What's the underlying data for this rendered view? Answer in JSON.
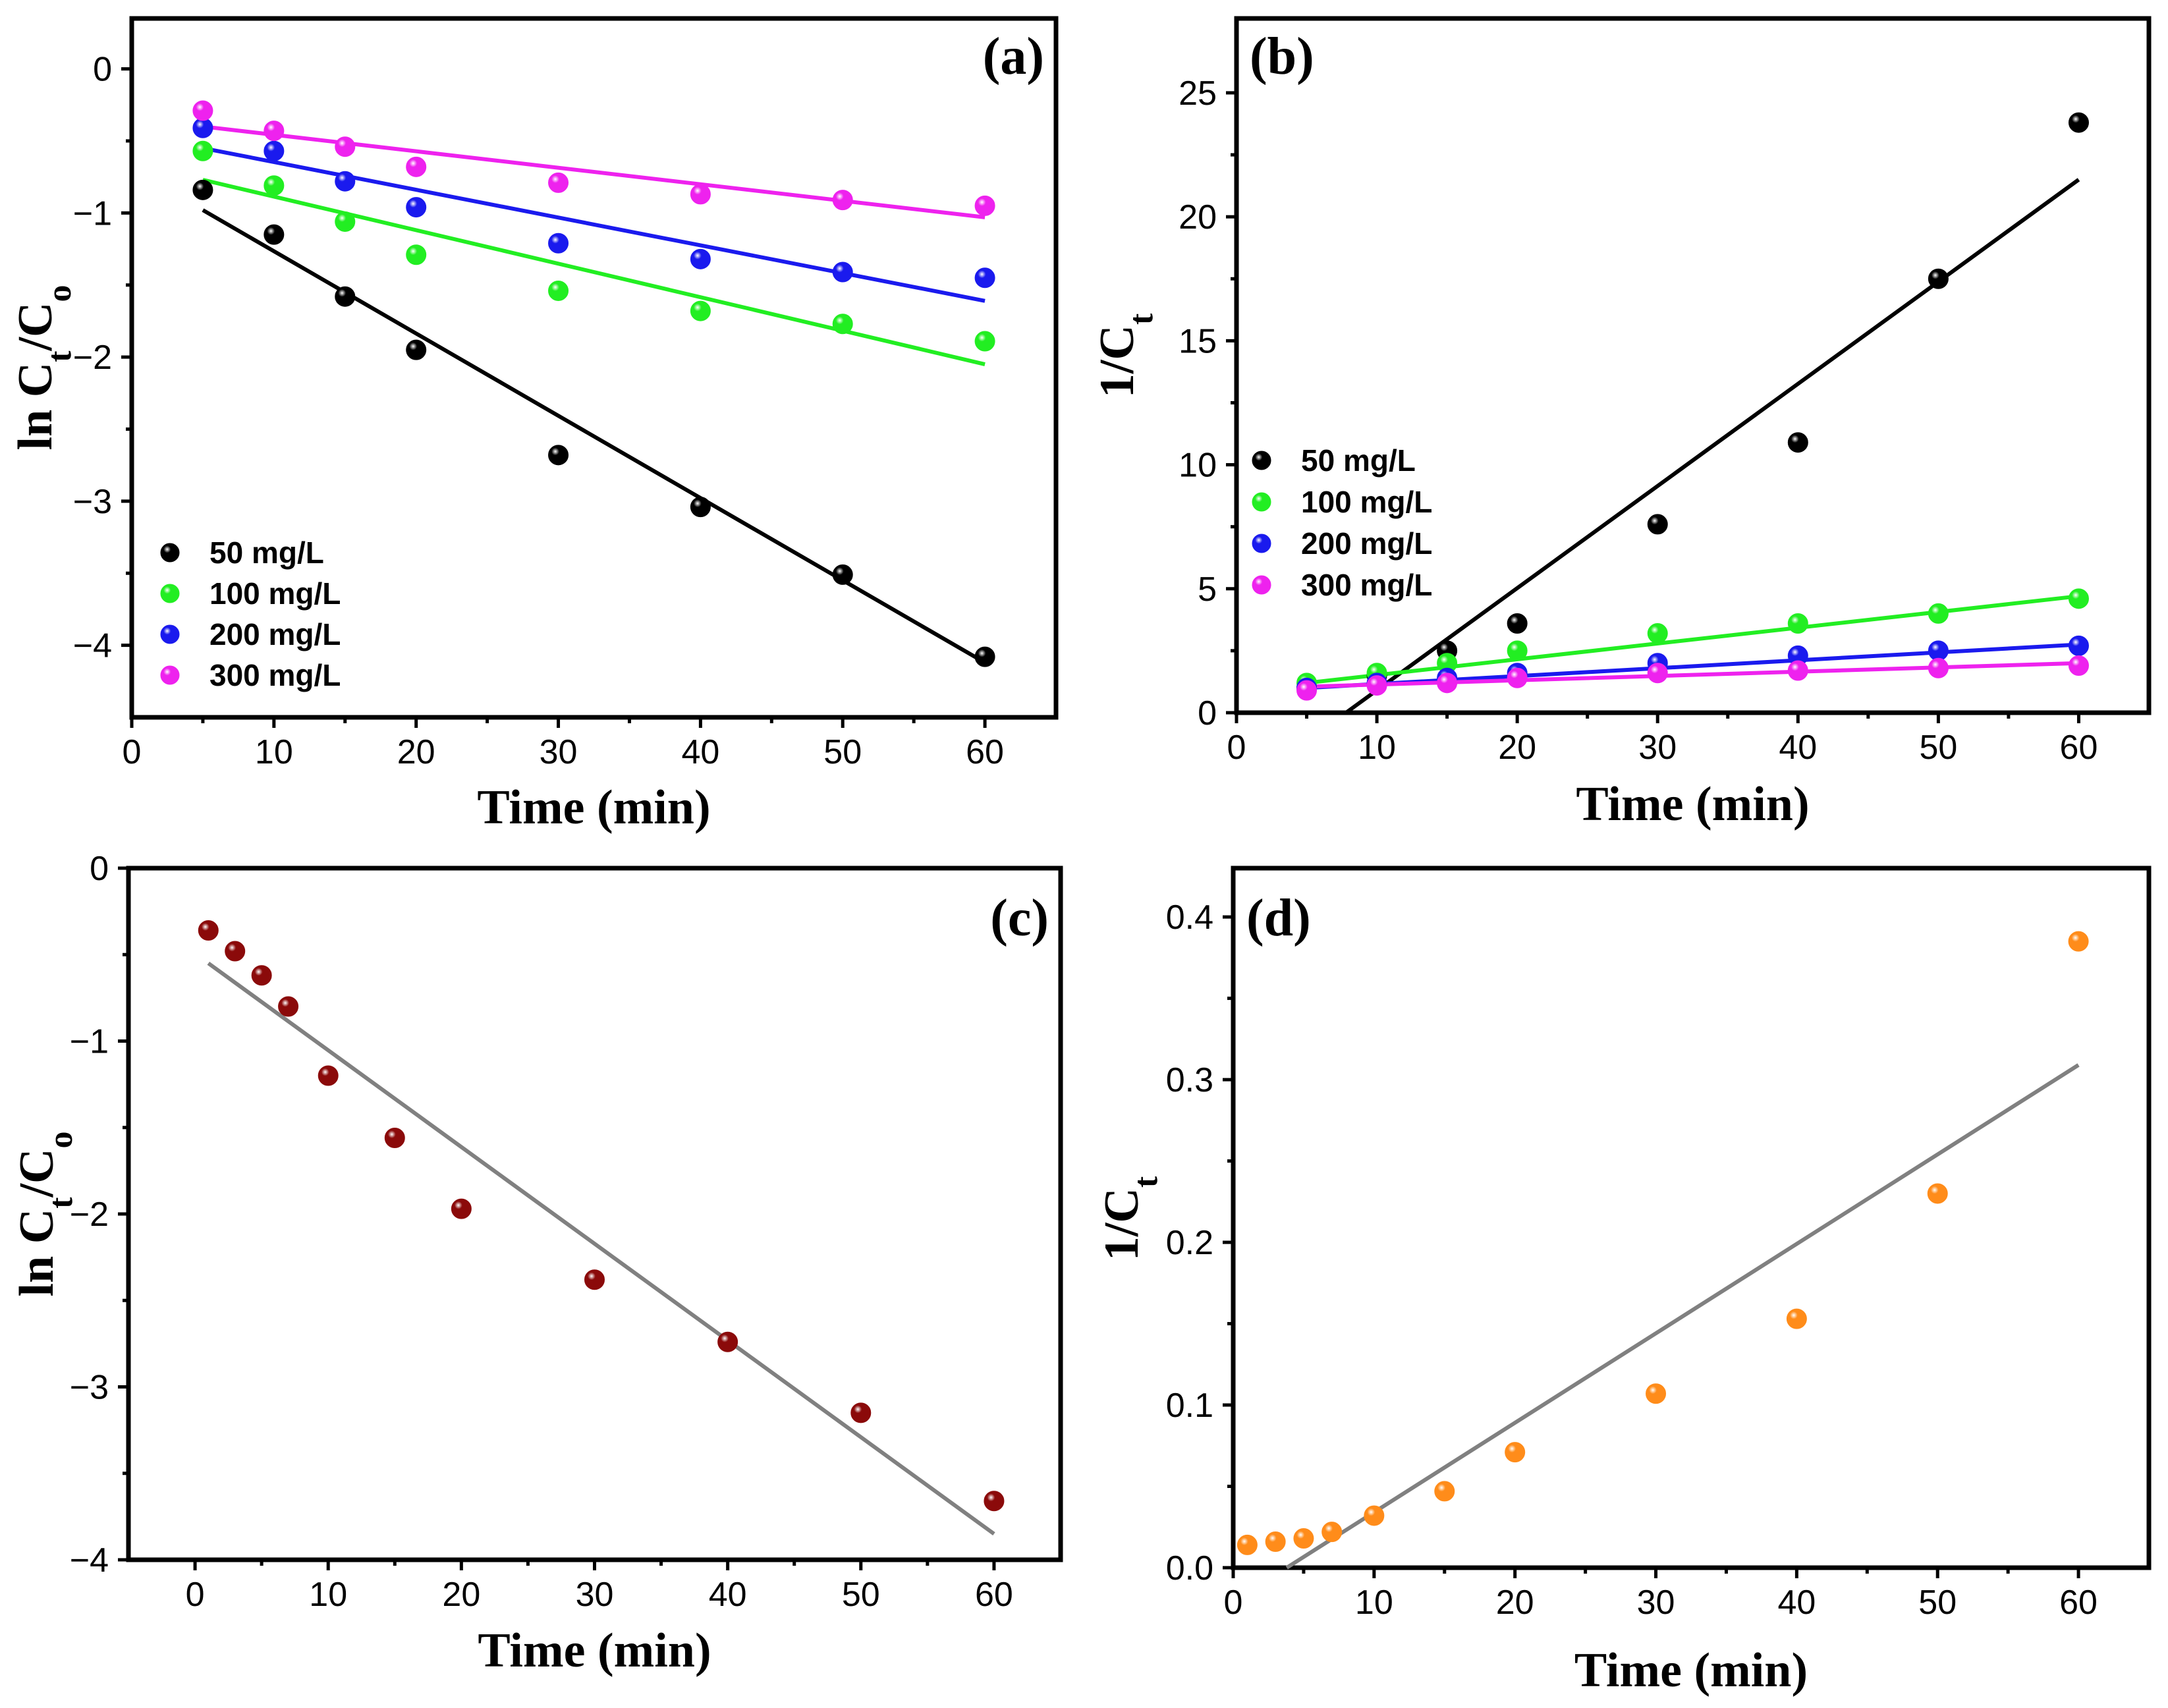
{
  "chart_data": [
    {
      "id": "a",
      "type": "scatter",
      "panel_label": "(a)",
      "xlabel": "Time (min)",
      "ylabel": "ln C_t/C_o",
      "xlim": [
        0,
        65
      ],
      "ylim": [
        -4.5,
        0.35
      ],
      "xticks": [
        0,
        10,
        20,
        30,
        40,
        50,
        60
      ],
      "yticks": [
        0,
        -1,
        -2,
        -3,
        -4
      ],
      "ytick_labels": [
        "0",
        "−1",
        "−2",
        "−3",
        "−4"
      ],
      "legend_position": "bottom-left",
      "series": [
        {
          "name": "50 mg/L",
          "color": "#000000",
          "x": [
            5,
            10,
            15,
            20,
            30,
            40,
            50,
            60
          ],
          "y": [
            -0.84,
            -1.15,
            -1.58,
            -1.95,
            -2.68,
            -3.04,
            -3.51,
            -4.08
          ],
          "fit": [
            [
              5,
              -0.98
            ],
            [
              60,
              -4.12
            ]
          ]
        },
        {
          "name": "100 mg/L",
          "color": "#22ee22",
          "x": [
            5,
            10,
            15,
            20,
            30,
            40,
            50,
            60
          ],
          "y": [
            -0.57,
            -0.81,
            -1.06,
            -1.29,
            -1.54,
            -1.68,
            -1.77,
            -1.89
          ],
          "fit": [
            [
              5,
              -0.77
            ],
            [
              60,
              -2.05
            ]
          ]
        },
        {
          "name": "200 mg/L",
          "color": "#1a1aee",
          "x": [
            5,
            10,
            15,
            20,
            30,
            40,
            50,
            60
          ],
          "y": [
            -0.41,
            -0.57,
            -0.78,
            -0.96,
            -1.21,
            -1.32,
            -1.41,
            -1.45
          ],
          "fit": [
            [
              5,
              -0.55
            ],
            [
              60,
              -1.61
            ]
          ]
        },
        {
          "name": "300 mg/L",
          "color": "#ee22ee",
          "x": [
            5,
            10,
            15,
            20,
            30,
            40,
            50,
            60
          ],
          "y": [
            -0.29,
            -0.43,
            -0.54,
            -0.68,
            -0.79,
            -0.87,
            -0.91,
            -0.95
          ],
          "fit": [
            [
              5,
              -0.4
            ],
            [
              60,
              -1.03
            ]
          ]
        }
      ]
    },
    {
      "id": "b",
      "type": "scatter",
      "panel_label": "(b)",
      "xlabel": "Time (min)",
      "ylabel": "1/C_t",
      "xlim": [
        0,
        65
      ],
      "ylim": [
        0,
        28
      ],
      "xticks": [
        0,
        10,
        20,
        30,
        40,
        50,
        60
      ],
      "yticks": [
        0,
        5,
        10,
        15,
        20,
        25
      ],
      "ytick_labels": [
        "0",
        "5",
        "10",
        "15",
        "20",
        "25"
      ],
      "legend_position": "center-left",
      "series": [
        {
          "name": "50 mg/L",
          "color": "#000000",
          "x": [
            5,
            10,
            15,
            20,
            30,
            40,
            50,
            60
          ],
          "y": [
            1.0,
            1.5,
            2.5,
            3.6,
            7.6,
            10.9,
            17.5,
            23.8
          ],
          "fit": [
            [
              7.8,
              0
            ],
            [
              60,
              21.5
            ]
          ]
        },
        {
          "name": "100 mg/L",
          "color": "#22ee22",
          "x": [
            5,
            10,
            15,
            20,
            30,
            40,
            50,
            60
          ],
          "y": [
            1.2,
            1.6,
            2.0,
            2.5,
            3.2,
            3.6,
            4.0,
            4.6
          ],
          "fit": [
            [
              5,
              1.2
            ],
            [
              60,
              4.7
            ]
          ]
        },
        {
          "name": "200 mg/L",
          "color": "#1a1aee",
          "x": [
            5,
            10,
            15,
            20,
            30,
            40,
            50,
            60
          ],
          "y": [
            1.0,
            1.2,
            1.4,
            1.6,
            2.0,
            2.3,
            2.5,
            2.7
          ],
          "fit": [
            [
              5,
              1.0
            ],
            [
              60,
              2.75
            ]
          ]
        },
        {
          "name": "300 mg/L",
          "color": "#ee22ee",
          "x": [
            5,
            10,
            15,
            20,
            30,
            40,
            50,
            60
          ],
          "y": [
            0.9,
            1.1,
            1.2,
            1.4,
            1.6,
            1.7,
            1.8,
            1.9
          ],
          "fit": [
            [
              5,
              1.05
            ],
            [
              60,
              2.0
            ]
          ]
        }
      ]
    },
    {
      "id": "c",
      "type": "scatter",
      "panel_label": "(c)",
      "xlabel": "Time (min)",
      "ylabel": "ln C_t/C_o",
      "xlim": [
        -5,
        65
      ],
      "ylim": [
        -4,
        0
      ],
      "xticks": [
        0,
        10,
        20,
        30,
        40,
        50,
        60
      ],
      "yticks": [
        0,
        -1,
        -2,
        -3,
        -4
      ],
      "ytick_labels": [
        "0",
        "−1",
        "−2",
        "−3",
        "−4"
      ],
      "series": [
        {
          "name": "",
          "color": "#8b0a0a",
          "x": [
            1,
            3,
            5,
            7,
            10,
            15,
            20,
            30,
            40,
            50,
            60
          ],
          "y": [
            -0.36,
            -0.48,
            -0.62,
            -0.8,
            -1.2,
            -1.56,
            -1.97,
            -2.38,
            -2.74,
            -3.15,
            -3.66
          ],
          "fit": [
            [
              1,
              -0.55
            ],
            [
              60,
              -3.85
            ]
          ],
          "fit_color": "#808080"
        }
      ]
    },
    {
      "id": "d",
      "type": "scatter",
      "panel_label": "(d)",
      "xlabel": "Time (min)",
      "ylabel": "1/C_t",
      "xlim": [
        0,
        65
      ],
      "ylim": [
        0,
        0.43
      ],
      "xticks": [
        0,
        10,
        20,
        30,
        40,
        50,
        60
      ],
      "yticks": [
        0.0,
        0.1,
        0.2,
        0.3,
        0.4
      ],
      "ytick_labels": [
        "0.0",
        "0.1",
        "0.2",
        "0.3",
        "0.4"
      ],
      "series": [
        {
          "name": "",
          "color": "#ff8c1a",
          "x": [
            1,
            3,
            5,
            7,
            10,
            15,
            20,
            30,
            40,
            50,
            60
          ],
          "y": [
            0.014,
            0.016,
            0.018,
            0.022,
            0.032,
            0.047,
            0.071,
            0.107,
            0.153,
            0.23,
            0.385
          ],
          "fit": [
            [
              3.8,
              0
            ],
            [
              60,
              0.309
            ]
          ],
          "fit_color": "#808080"
        }
      ]
    }
  ]
}
